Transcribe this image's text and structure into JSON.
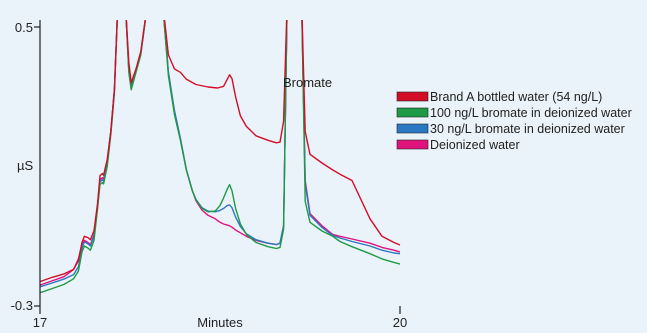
{
  "chart_data": {
    "type": "line",
    "title": "",
    "xlabel": "Minutes",
    "ylabel": "µS",
    "xlim": [
      17,
      20
    ],
    "ylim": [
      -0.3,
      0.5
    ],
    "x_ticks": [
      "17",
      "20"
    ],
    "y_ticks": [
      "0.5",
      "-0.3"
    ],
    "grid": false,
    "legend_position": "right",
    "annotations": [
      {
        "text": "Bromate",
        "x": 18.58,
        "y": 0.362
      }
    ],
    "series": [
      {
        "name": "Brand A bottled water (54 ng/L)",
        "color": "#d40d27",
        "points": [
          [
            17,
            -0.23
          ],
          [
            17.1,
            -0.218
          ],
          [
            17.2,
            -0.208
          ],
          [
            17.28,
            -0.195
          ],
          [
            17.32,
            -0.17
          ],
          [
            17.35,
            -0.118
          ],
          [
            17.37,
            -0.1
          ],
          [
            17.4,
            -0.104
          ],
          [
            17.42,
            -0.11
          ],
          [
            17.45,
            -0.084
          ],
          [
            17.48,
            -0.005
          ],
          [
            17.5,
            0.074
          ],
          [
            17.52,
            0.08
          ],
          [
            17.53,
            0.075
          ],
          [
            17.56,
            0.12
          ],
          [
            17.59,
            0.2
          ],
          [
            17.62,
            0.32
          ],
          [
            17.65,
            0.5
          ],
          [
            17.71,
            0.5
          ],
          [
            17.74,
            0.4
          ],
          [
            17.76,
            0.34
          ],
          [
            17.8,
            0.38
          ],
          [
            17.84,
            0.43
          ],
          [
            17.9,
            0.5
          ],
          [
            18.02,
            0.5
          ],
          [
            18.07,
            0.42
          ],
          [
            18.12,
            0.38
          ],
          [
            18.17,
            0.37
          ],
          [
            18.22,
            0.35
          ],
          [
            18.3,
            0.335
          ],
          [
            18.4,
            0.328
          ],
          [
            18.48,
            0.325
          ],
          [
            18.53,
            0.33
          ],
          [
            18.56,
            0.35
          ],
          [
            18.58,
            0.363
          ],
          [
            18.6,
            0.352
          ],
          [
            18.63,
            0.3
          ],
          [
            18.67,
            0.245
          ],
          [
            18.72,
            0.215
          ],
          [
            18.8,
            0.188
          ],
          [
            18.9,
            0.175
          ],
          [
            18.97,
            0.168
          ],
          [
            19.0,
            0.17
          ],
          [
            19.03,
            0.23
          ],
          [
            19.06,
            0.5
          ],
          [
            19.1,
            0.5
          ],
          [
            19.15,
            0.5
          ],
          [
            19.18,
            0.5
          ],
          [
            19.21,
            0.2
          ],
          [
            19.25,
            0.135
          ],
          [
            19.35,
            0.11
          ],
          [
            19.44,
            0.09
          ],
          [
            19.5,
            0.078
          ],
          [
            19.6,
            0.06
          ],
          [
            19.75,
            -0.05
          ],
          [
            19.85,
            -0.1
          ],
          [
            19.95,
            -0.118
          ],
          [
            20.0,
            -0.125
          ]
        ]
      },
      {
        "name": "100 ng/L bromate in deionized water",
        "color": "#1e9a45",
        "points": [
          [
            17,
            -0.262
          ],
          [
            17.1,
            -0.25
          ],
          [
            17.2,
            -0.238
          ],
          [
            17.28,
            -0.222
          ],
          [
            17.32,
            -0.2
          ],
          [
            17.35,
            -0.145
          ],
          [
            17.37,
            -0.128
          ],
          [
            17.4,
            -0.134
          ],
          [
            17.42,
            -0.14
          ],
          [
            17.45,
            -0.112
          ],
          [
            17.48,
            -0.02
          ],
          [
            17.5,
            0.048
          ],
          [
            17.52,
            0.054
          ],
          [
            17.53,
            0.05
          ],
          [
            17.56,
            0.1
          ],
          [
            17.59,
            0.19
          ],
          [
            17.62,
            0.31
          ],
          [
            17.65,
            0.5
          ],
          [
            17.71,
            0.5
          ],
          [
            17.74,
            0.37
          ],
          [
            17.76,
            0.32
          ],
          [
            17.8,
            0.37
          ],
          [
            17.84,
            0.42
          ],
          [
            17.9,
            0.5
          ],
          [
            18.02,
            0.5
          ],
          [
            18.07,
            0.36
          ],
          [
            18.12,
            0.25
          ],
          [
            18.17,
            0.175
          ],
          [
            18.22,
            0.09
          ],
          [
            18.27,
            0.03
          ],
          [
            18.3,
            0.005
          ],
          [
            18.35,
            -0.02
          ],
          [
            18.4,
            -0.03
          ],
          [
            18.46,
            -0.028
          ],
          [
            18.5,
            -0.012
          ],
          [
            18.53,
            0.01
          ],
          [
            18.56,
            0.035
          ],
          [
            18.58,
            0.048
          ],
          [
            18.6,
            0.03
          ],
          [
            18.63,
            -0.02
          ],
          [
            18.67,
            -0.065
          ],
          [
            18.72,
            -0.095
          ],
          [
            18.8,
            -0.118
          ],
          [
            18.9,
            -0.13
          ],
          [
            18.97,
            -0.135
          ],
          [
            19.0,
            -0.132
          ],
          [
            19.03,
            -0.08
          ],
          [
            19.06,
            0.5
          ],
          [
            19.1,
            0.5
          ],
          [
            19.15,
            0.5
          ],
          [
            19.18,
            0.5
          ],
          [
            19.21,
            0.0
          ],
          [
            19.25,
            -0.06
          ],
          [
            19.35,
            -0.085
          ],
          [
            19.44,
            -0.1
          ],
          [
            19.5,
            -0.115
          ],
          [
            19.6,
            -0.13
          ],
          [
            19.75,
            -0.15
          ],
          [
            19.85,
            -0.165
          ],
          [
            19.95,
            -0.175
          ],
          [
            20.0,
            -0.18
          ]
        ]
      },
      {
        "name": "30 ng/L bromate in deionized water",
        "color": "#2a78c4",
        "points": [
          [
            17,
            -0.245
          ],
          [
            17.1,
            -0.234
          ],
          [
            17.2,
            -0.223
          ],
          [
            17.28,
            -0.21
          ],
          [
            17.32,
            -0.188
          ],
          [
            17.35,
            -0.134
          ],
          [
            17.37,
            -0.116
          ],
          [
            17.4,
            -0.122
          ],
          [
            17.42,
            -0.128
          ],
          [
            17.45,
            -0.1
          ],
          [
            17.48,
            -0.015
          ],
          [
            17.5,
            0.056
          ],
          [
            17.52,
            0.062
          ],
          [
            17.53,
            0.058
          ],
          [
            17.56,
            0.11
          ],
          [
            17.59,
            0.2
          ],
          [
            17.62,
            0.32
          ],
          [
            17.65,
            0.5
          ],
          [
            17.71,
            0.5
          ],
          [
            17.74,
            0.38
          ],
          [
            17.76,
            0.33
          ],
          [
            17.8,
            0.375
          ],
          [
            17.84,
            0.425
          ],
          [
            17.9,
            0.5
          ],
          [
            18.02,
            0.5
          ],
          [
            18.07,
            0.37
          ],
          [
            18.12,
            0.26
          ],
          [
            18.17,
            0.18
          ],
          [
            18.22,
            0.09
          ],
          [
            18.27,
            0.03
          ],
          [
            18.3,
            0.005
          ],
          [
            18.35,
            -0.018
          ],
          [
            18.4,
            -0.028
          ],
          [
            18.46,
            -0.03
          ],
          [
            18.5,
            -0.026
          ],
          [
            18.53,
            -0.02
          ],
          [
            18.56,
            -0.012
          ],
          [
            18.58,
            -0.01
          ],
          [
            18.6,
            -0.018
          ],
          [
            18.63,
            -0.045
          ],
          [
            18.67,
            -0.072
          ],
          [
            18.72,
            -0.093
          ],
          [
            18.8,
            -0.11
          ],
          [
            18.9,
            -0.12
          ],
          [
            18.97,
            -0.124
          ],
          [
            19.0,
            -0.12
          ],
          [
            19.03,
            -0.07
          ],
          [
            19.06,
            0.5
          ],
          [
            19.1,
            0.5
          ],
          [
            19.15,
            0.5
          ],
          [
            19.18,
            0.5
          ],
          [
            19.21,
            0.05
          ],
          [
            19.25,
            -0.04
          ],
          [
            19.35,
            -0.075
          ],
          [
            19.44,
            -0.098
          ],
          [
            19.5,
            -0.105
          ],
          [
            19.6,
            -0.115
          ],
          [
            19.75,
            -0.128
          ],
          [
            19.85,
            -0.14
          ],
          [
            19.95,
            -0.148
          ],
          [
            20.0,
            -0.15
          ]
        ]
      },
      {
        "name": "Deionized water",
        "color": "#e0137d",
        "points": [
          [
            17,
            -0.24
          ],
          [
            17.1,
            -0.228
          ],
          [
            17.2,
            -0.216
          ],
          [
            17.28,
            -0.195
          ],
          [
            17.32,
            -0.165
          ],
          [
            17.35,
            -0.122
          ],
          [
            17.37,
            -0.112
          ],
          [
            17.4,
            -0.118
          ],
          [
            17.42,
            -0.124
          ],
          [
            17.45,
            -0.096
          ],
          [
            17.48,
            -0.01
          ],
          [
            17.5,
            0.062
          ],
          [
            17.52,
            0.068
          ],
          [
            17.53,
            0.064
          ],
          [
            17.56,
            0.115
          ],
          [
            17.59,
            0.2
          ],
          [
            17.62,
            0.32
          ],
          [
            17.65,
            0.5
          ],
          [
            17.71,
            0.5
          ],
          [
            17.74,
            0.38
          ],
          [
            17.76,
            0.33
          ],
          [
            17.8,
            0.375
          ],
          [
            17.84,
            0.425
          ],
          [
            17.9,
            0.5
          ],
          [
            18.02,
            0.5
          ],
          [
            18.07,
            0.37
          ],
          [
            18.12,
            0.26
          ],
          [
            18.17,
            0.18
          ],
          [
            18.22,
            0.09
          ],
          [
            18.27,
            0.03
          ],
          [
            18.3,
            0.002
          ],
          [
            18.35,
            -0.025
          ],
          [
            18.4,
            -0.04
          ],
          [
            18.46,
            -0.05
          ],
          [
            18.5,
            -0.06
          ],
          [
            18.53,
            -0.065
          ],
          [
            18.56,
            -0.068
          ],
          [
            18.58,
            -0.07
          ],
          [
            18.6,
            -0.074
          ],
          [
            18.63,
            -0.082
          ],
          [
            18.67,
            -0.09
          ],
          [
            18.72,
            -0.1
          ],
          [
            18.8,
            -0.112
          ],
          [
            18.9,
            -0.12
          ],
          [
            18.97,
            -0.124
          ],
          [
            19.0,
            -0.12
          ],
          [
            19.03,
            -0.07
          ],
          [
            19.06,
            0.5
          ],
          [
            19.1,
            0.5
          ],
          [
            19.15,
            0.5
          ],
          [
            19.18,
            0.5
          ],
          [
            19.21,
            0.06
          ],
          [
            19.25,
            -0.035
          ],
          [
            19.35,
            -0.07
          ],
          [
            19.44,
            -0.095
          ],
          [
            19.5,
            -0.1
          ],
          [
            19.6,
            -0.108
          ],
          [
            19.75,
            -0.12
          ],
          [
            19.85,
            -0.132
          ],
          [
            19.95,
            -0.14
          ],
          [
            20.0,
            -0.145
          ]
        ]
      }
    ]
  }
}
